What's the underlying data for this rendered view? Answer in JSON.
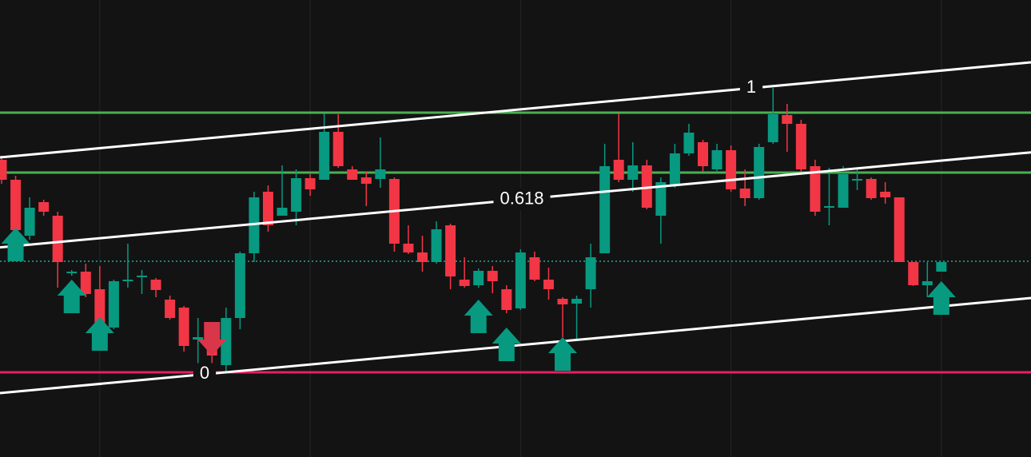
{
  "chart_data": {
    "type": "candlestick",
    "up_color": "#089981",
    "down_color": "#f23645",
    "ylim": [
      0,
      572
    ],
    "open": [
      372,
      347,
      277,
      319,
      302,
      230,
      232,
      210,
      162,
      220,
      225,
      222,
      197,
      187,
      147,
      162,
      115,
      174,
      255,
      332,
      302,
      307,
      349,
      347,
      407,
      360,
      350,
      348,
      348,
      267,
      256,
      244,
      290,
      222,
      215,
      233,
      210,
      186,
      250,
      222,
      198,
      192,
      210,
      255,
      372,
      347,
      365,
      302,
      340,
      380,
      394,
      360,
      384,
      336,
      324,
      394,
      428,
      417,
      364,
      312,
      312,
      346,
      348,
      332,
      325,
      244,
      215,
      232
    ],
    "high": [
      377,
      352,
      325,
      322,
      307,
      234,
      242,
      239,
      222,
      267,
      234,
      224,
      202,
      189,
      174,
      167,
      187,
      257,
      332,
      340,
      365,
      360,
      354,
      430,
      429,
      364,
      357,
      400,
      350,
      290,
      277,
      295,
      292,
      250,
      236,
      239,
      215,
      260,
      257,
      237,
      200,
      202,
      267,
      392,
      430,
      394,
      372,
      350,
      392,
      417,
      397,
      392,
      390,
      360,
      392,
      462,
      442,
      422,
      372,
      362,
      364,
      360,
      350,
      344,
      325,
      244,
      244,
      244
    ],
    "low": [
      342,
      277,
      272,
      302,
      212,
      227,
      200,
      162,
      160,
      212,
      204,
      200,
      172,
      132,
      112,
      117,
      107,
      160,
      244,
      282,
      302,
      290,
      327,
      347,
      362,
      347,
      314,
      337,
      257,
      254,
      232,
      242,
      210,
      212,
      212,
      205,
      180,
      184,
      220,
      197,
      150,
      147,
      187,
      255,
      344,
      332,
      310,
      267,
      337,
      377,
      357,
      358,
      332,
      314,
      322,
      392,
      382,
      357,
      302,
      290,
      312,
      334,
      322,
      317,
      244,
      214,
      200,
      232
    ],
    "close": [
      347,
      284,
      312,
      307,
      244,
      232,
      204,
      167,
      220,
      222,
      227,
      209,
      174,
      139,
      150,
      127,
      174,
      255,
      325,
      290,
      312,
      349,
      335,
      407,
      364,
      347,
      342,
      360,
      267,
      256,
      244,
      285,
      226,
      214,
      233,
      220,
      184,
      256,
      222,
      210,
      191,
      198,
      250,
      364,
      347,
      365,
      312,
      344,
      380,
      406,
      364,
      384,
      335,
      324,
      388,
      429,
      417,
      360,
      307,
      314,
      354,
      348,
      324,
      325,
      244,
      215,
      220,
      244
    ],
    "buy": [
      null,
      287,
      null,
      null,
      null,
      222,
      null,
      175,
      null,
      null,
      null,
      null,
      null,
      null,
      null,
      null,
      null,
      null,
      null,
      null,
      null,
      null,
      null,
      null,
      null,
      null,
      null,
      null,
      null,
      null,
      null,
      null,
      null,
      null,
      197,
      null,
      162,
      null,
      null,
      null,
      150,
      null,
      null,
      null,
      null,
      null,
      null,
      null,
      null,
      null,
      null,
      null,
      null,
      null,
      null,
      null,
      null,
      null,
      null,
      null,
      null,
      null,
      null,
      null,
      null,
      null,
      null,
      220
    ],
    "sell": [
      null,
      null,
      null,
      null,
      null,
      null,
      null,
      null,
      null,
      null,
      null,
      null,
      null,
      null,
      null,
      127,
      null,
      null,
      null,
      null,
      null,
      null,
      null,
      null,
      null,
      null,
      null,
      null,
      null,
      null,
      null,
      null,
      null,
      null,
      null,
      null,
      null,
      null,
      null,
      null,
      null,
      null,
      null,
      null,
      null,
      null,
      null,
      null,
      null,
      null,
      null,
      null,
      null,
      null,
      null,
      null,
      null,
      null,
      null,
      null,
      null,
      null,
      null,
      null,
      null,
      null,
      null,
      null
    ],
    "levels": [
      {
        "value": 431,
        "color": "#4caf50",
        "style": "solid"
      },
      {
        "value": 356,
        "color": "#4caf50",
        "style": "solid"
      },
      {
        "value": 245,
        "color": "#26a69a",
        "style": "dotted"
      },
      {
        "value": 106,
        "color": "#e91e63",
        "style": "solid"
      }
    ],
    "channel": {
      "start": 80,
      "end": 199,
      "height": 295,
      "levels": [
        0,
        0.618,
        1
      ],
      "color": "#ffffff"
    }
  }
}
